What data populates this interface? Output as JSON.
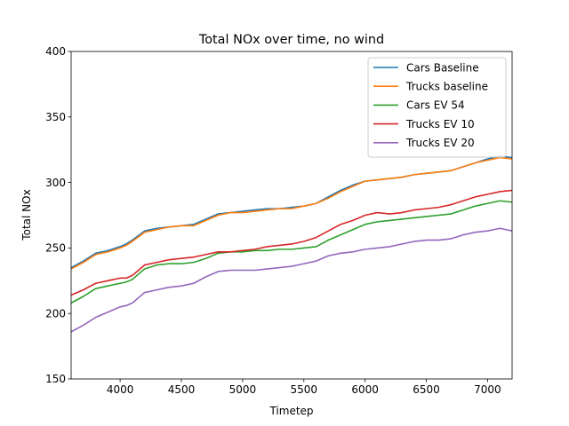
{
  "chart_data": {
    "type": "line",
    "title": "Total NOx over time, no wind",
    "xlabel": "Timetep",
    "ylabel": "Total NOx",
    "xlim": [
      3600,
      7200
    ],
    "ylim": [
      150,
      400
    ],
    "x_ticks": [
      4000,
      4500,
      5000,
      5500,
      6000,
      6500,
      7000
    ],
    "y_ticks": [
      150,
      200,
      250,
      300,
      350,
      400
    ],
    "x_tick_labels": [
      "4000",
      "4500",
      "5000",
      "5500",
      "6000",
      "6500",
      "7000"
    ],
    "y_tick_labels": [
      "150",
      "200",
      "250",
      "300",
      "350",
      "400"
    ],
    "grid": false,
    "legend_position": "top-right",
    "x": [
      3600,
      3700,
      3800,
      3900,
      4000,
      4050,
      4100,
      4200,
      4300,
      4400,
      4500,
      4600,
      4700,
      4800,
      4900,
      5000,
      5100,
      5200,
      5300,
      5400,
      5500,
      5600,
      5700,
      5800,
      5900,
      6000,
      6100,
      6200,
      6300,
      6400,
      6500,
      6600,
      6700,
      6800,
      6900,
      7000,
      7100,
      7200
    ],
    "series": [
      {
        "name": "Cars Baseline",
        "color": "#1f77b4",
        "values": [
          235,
          240,
          246,
          248,
          251,
          253,
          256,
          263,
          265,
          266,
          267,
          268,
          272,
          276,
          277,
          278,
          279,
          280,
          280,
          281,
          282,
          284,
          289,
          294,
          298,
          301,
          302,
          303,
          304,
          306,
          307,
          308,
          309,
          312,
          315,
          318,
          320,
          319
        ]
      },
      {
        "name": "Trucks baseline",
        "color": "#ff7f0e",
        "values": [
          234,
          239,
          245,
          247,
          250,
          252,
          255,
          262,
          264,
          266,
          267,
          267,
          271,
          275,
          277,
          277,
          278,
          279,
          280,
          280,
          282,
          284,
          288,
          293,
          297,
          301,
          302,
          303,
          304,
          306,
          307,
          308,
          309,
          312,
          315,
          317,
          319,
          318
        ]
      },
      {
        "name": "Cars EV 54",
        "color": "#2ca02c",
        "values": [
          208,
          213,
          219,
          221,
          223,
          224,
          226,
          234,
          237,
          238,
          238,
          239,
          242,
          246,
          247,
          247,
          248,
          248,
          249,
          249,
          250,
          251,
          256,
          260,
          264,
          268,
          270,
          271,
          272,
          273,
          274,
          275,
          276,
          279,
          282,
          284,
          286,
          285
        ]
      },
      {
        "name": "Trucks EV 10",
        "color": "#d62728",
        "values": [
          214,
          218,
          223,
          225,
          227,
          227,
          229,
          237,
          239,
          241,
          242,
          243,
          245,
          247,
          247,
          248,
          249,
          251,
          252,
          253,
          255,
          258,
          263,
          268,
          271,
          275,
          277,
          276,
          277,
          279,
          280,
          281,
          283,
          286,
          289,
          291,
          293,
          294
        ]
      },
      {
        "name": "Trucks EV 20",
        "color": "#9467bd",
        "values": [
          186,
          191,
          197,
          201,
          205,
          206,
          208,
          216,
          218,
          220,
          221,
          223,
          228,
          232,
          233,
          233,
          233,
          234,
          235,
          236,
          238,
          240,
          244,
          246,
          247,
          249,
          250,
          251,
          253,
          255,
          256,
          256,
          257,
          260,
          262,
          263,
          265,
          263
        ]
      }
    ]
  }
}
